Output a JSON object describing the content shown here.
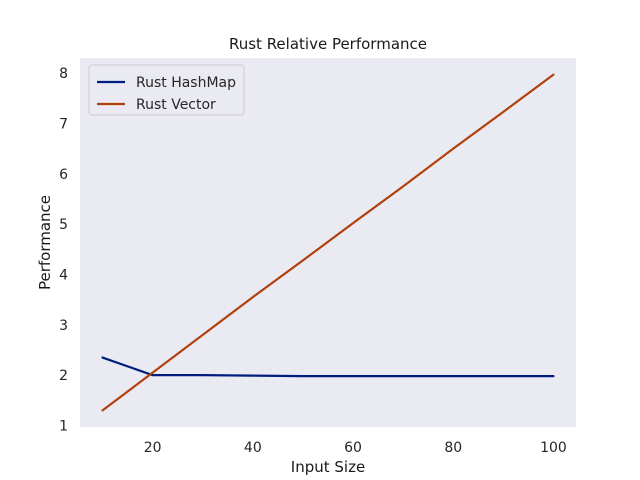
{
  "chart_data": {
    "type": "line",
    "title": "Rust Relative Performance",
    "xlabel": "Input Size",
    "ylabel": "Performance",
    "xlim": [
      5.5,
      104.5
    ],
    "ylim": [
      0.97,
      8.3
    ],
    "xticks": [
      20,
      40,
      60,
      80,
      100
    ],
    "yticks": [
      1,
      2,
      3,
      4,
      5,
      6,
      7,
      8
    ],
    "grid": false,
    "legend_position": "top-left",
    "background": "#eaeaf2",
    "series": [
      {
        "name": "Rust HashMap",
        "color": "#001c7f",
        "x": [
          10,
          20,
          30,
          40,
          50,
          60,
          70,
          80,
          90,
          100
        ],
        "y": [
          2.35,
          2.0,
          2.0,
          1.99,
          1.98,
          1.98,
          1.98,
          1.98,
          1.98,
          1.98
        ]
      },
      {
        "name": "Rust Vector",
        "color": "#b1400d",
        "x": [
          10,
          20,
          30,
          40,
          50,
          60,
          70,
          80,
          90,
          100
        ],
        "y": [
          1.3,
          2.05,
          2.8,
          3.55,
          4.28,
          5.02,
          5.75,
          6.5,
          7.23,
          7.97
        ]
      }
    ]
  }
}
